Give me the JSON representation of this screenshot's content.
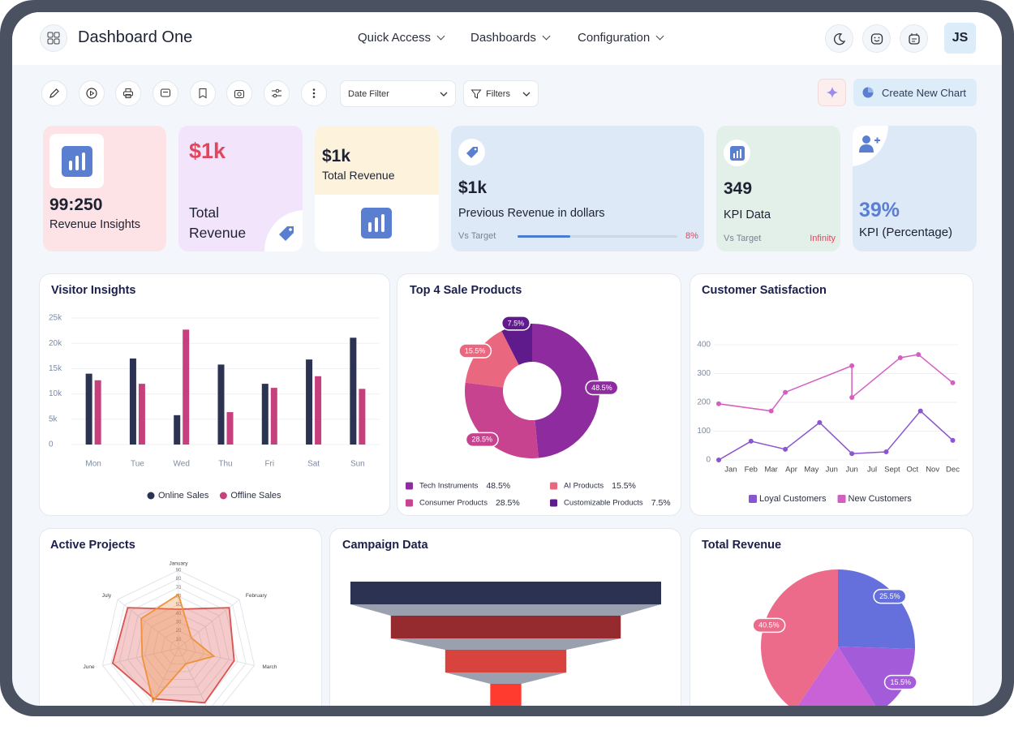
{
  "header": {
    "title": "Dashboard One",
    "nav": [
      "Quick Access",
      "Dashboards",
      "Configuration"
    ],
    "avatar": "JS"
  },
  "toolbar": {
    "date_filter": "Date Filter",
    "filters": "Filters",
    "create_button": "Create New Chart"
  },
  "kpis": [
    {
      "value": "99:250",
      "label": "Revenue Insights"
    },
    {
      "value": "$1k",
      "label": "Total Revenue"
    },
    {
      "value": "$1k",
      "label": "Total Revenue"
    },
    {
      "value": "$1k",
      "label": "Previous Revenue in dollars",
      "target_label": "Vs Target",
      "target": "8%"
    },
    {
      "value": "349",
      "label": "KPI Data",
      "target_label": "Vs Target",
      "target": "Infinity"
    },
    {
      "value": "39%",
      "label": "KPI (Percentage)"
    }
  ],
  "chart_data": [
    {
      "type": "bar",
      "title": "Visitor Insights",
      "categories": [
        "Mon",
        "Tue",
        "Wed",
        "Thu",
        "Fri",
        "Sat",
        "Sun"
      ],
      "series": [
        {
          "name": "Online Sales",
          "color": "#2b3252",
          "values": [
            14000,
            17000,
            5800,
            15800,
            12000,
            16800,
            21100
          ]
        },
        {
          "name": "Offline Sales",
          "color": "#c7407e",
          "values": [
            12700,
            12000,
            22700,
            6400,
            11200,
            13500,
            11000
          ]
        }
      ],
      "ylim": [
        0,
        25000
      ],
      "yticks": [
        0,
        {
          "value": 5000,
          "label": "5k"
        },
        {
          "value": 10000,
          "label": "10k"
        },
        {
          "value": 15000,
          "label": "15k"
        },
        {
          "value": 20000,
          "label": "20k"
        },
        {
          "value": 25000,
          "label": "25k"
        }
      ],
      "grid": true,
      "legend": "bottom"
    },
    {
      "type": "pie",
      "title": "Top 4 Sale Products",
      "donut": true,
      "categories": [
        "Tech Instruments",
        "Consumer Products",
        "AI Products",
        "Customizable Products"
      ],
      "values": [
        48.5,
        28.5,
        15.5,
        7.5
      ],
      "value_labels": [
        "48.5%",
        "28.5%",
        "15.5%",
        "7.5%"
      ],
      "colors": [
        "#8e2c9f",
        "#c8438f",
        "#e9677f",
        "#5f1b8b"
      ],
      "legend": "bottom"
    },
    {
      "type": "line",
      "title": "Customer Satisfaction",
      "xlim": [
        -0.6,
        11.1
      ],
      "xticks": [
        {
          "value": 0,
          "label": "Jan"
        },
        {
          "value": 1,
          "label": "Feb"
        },
        {
          "value": 2,
          "label": "Mar"
        },
        {
          "value": 3,
          "label": "Apr"
        },
        {
          "value": 4,
          "label": "May"
        },
        {
          "value": 5,
          "label": "Jun"
        },
        {
          "value": 6,
          "label": "Jun"
        },
        {
          "value": 7,
          "label": "Jul"
        },
        {
          "value": 8,
          "label": "Sept"
        },
        {
          "value": 9,
          "label": "Oct"
        },
        {
          "value": 10,
          "label": "Nov"
        },
        {
          "value": 11,
          "label": "Dec"
        }
      ],
      "ylim": [
        0,
        400
      ],
      "yticks": [
        0,
        100,
        200,
        300,
        400
      ],
      "grid": true,
      "series": [
        {
          "name": "Loyal Customers",
          "color": "#8a55d0",
          "x": [
            -0.6,
            1,
            2.7,
            4.4,
            6,
            7.7,
            9.4,
            11
          ],
          "values": [
            0,
            65,
            37,
            130,
            22,
            28,
            170,
            68
          ]
        },
        {
          "name": "New Customers",
          "color": "#d45fc0",
          "x": [
            -0.6,
            2,
            2.7,
            6,
            6,
            8.4,
            9.3,
            11
          ],
          "values": [
            195,
            170,
            235,
            327,
            217,
            355,
            366,
            268
          ]
        }
      ],
      "legend": "bottom"
    },
    {
      "type": "radar",
      "title": "Active Projects",
      "categories": [
        "January",
        "February",
        "March",
        null,
        null,
        "June",
        "July"
      ],
      "rlim": [
        0,
        90
      ],
      "rticks": [
        10,
        20,
        30,
        40,
        50,
        60,
        70,
        80,
        90
      ],
      "series": [
        {
          "color": "#d9534f",
          "values": [
            45,
            75,
            66,
            70,
            65,
            78,
            75
          ]
        },
        {
          "color": "#f0923a",
          "values": [
            62,
            19,
            42,
            20,
            68,
            43,
            55
          ]
        }
      ]
    },
    {
      "type": "funnel",
      "title": "Campaign Data",
      "values": [
        100,
        74,
        39,
        10
      ],
      "colors": [
        "#2b3252",
        "#952a2f",
        "#d8433d",
        "#ff3b30"
      ],
      "connector_color": "#9aa0ad"
    },
    {
      "type": "pie",
      "title": "Total Revenue",
      "values": [
        25.5,
        15.5,
        18.5,
        40.5
      ],
      "value_labels": [
        "25.5%",
        "15.5%",
        null,
        "40.5%"
      ],
      "colors": [
        "#6670dc",
        "#a35bd9",
        "#c862d6",
        "#ec6b8b"
      ]
    }
  ]
}
